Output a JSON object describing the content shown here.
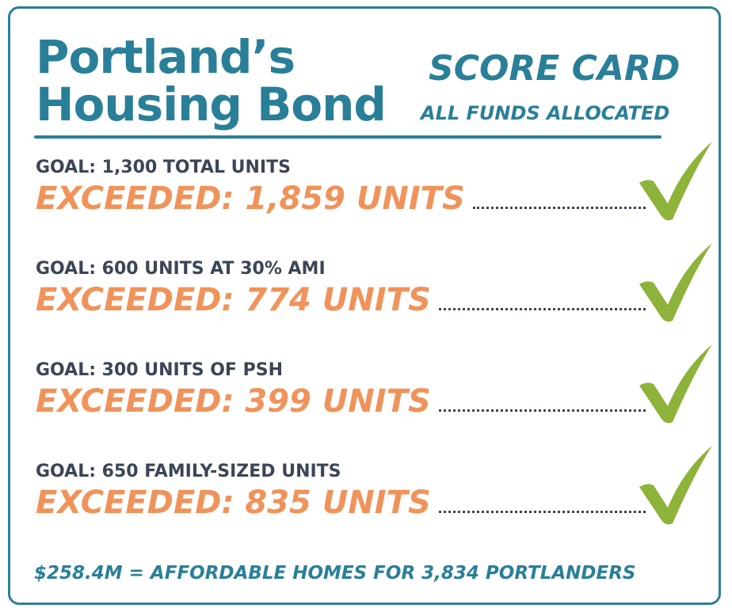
{
  "header": {
    "title_lines": [
      "Portland’s",
      "Housing Bond"
    ],
    "badge": "SCORE CARD",
    "badge_subtitle": "ALL FUNDS ALLOCATED"
  },
  "items": [
    {
      "goal": "GOAL: 1,300 TOTAL UNITS",
      "result": "EXCEEDED: 1,859 UNITS"
    },
    {
      "goal": "GOAL: 600 UNITS AT 30% AMI",
      "result": "EXCEEDED: 774 UNITS"
    },
    {
      "goal": "GOAL: 300 UNITS OF PSH",
      "result": "EXCEEDED: 399 UNITS"
    },
    {
      "goal": "GOAL: 650 FAMILY-SIZED UNITS",
      "result": "EXCEEDED: 835 UNITS"
    }
  ],
  "footer": "$258.4M = AFFORDABLE HOMES FOR 3,834 PORTLANDERS"
}
